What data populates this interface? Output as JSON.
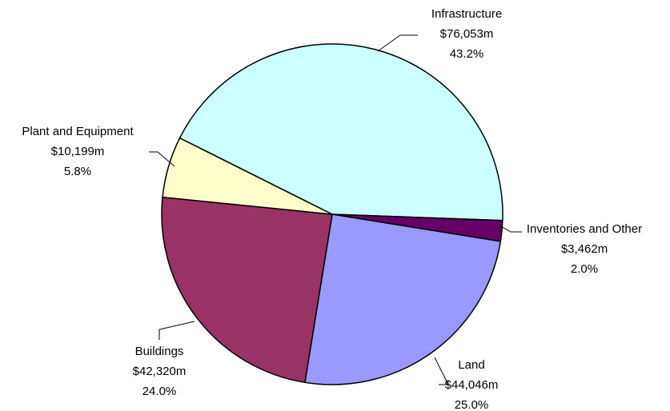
{
  "chart_data": {
    "type": "pie",
    "categories": [
      "Infrastructure",
      "Inventories and Other",
      "Land",
      "Buildings",
      "Plant and Equipment"
    ],
    "values": [
      76053,
      3462,
      44046,
      42320,
      10199
    ],
    "value_labels": [
      "$76,053m",
      "$3,462m",
      "$44,046m",
      "$42,320m",
      "$10,199m"
    ],
    "percent_labels": [
      "43.2%",
      "2.0%",
      "25.0%",
      "24.0%",
      "5.8%"
    ],
    "colors": [
      "#ccffff",
      "#660066",
      "#9999ff",
      "#993366",
      "#ffffcc"
    ]
  }
}
